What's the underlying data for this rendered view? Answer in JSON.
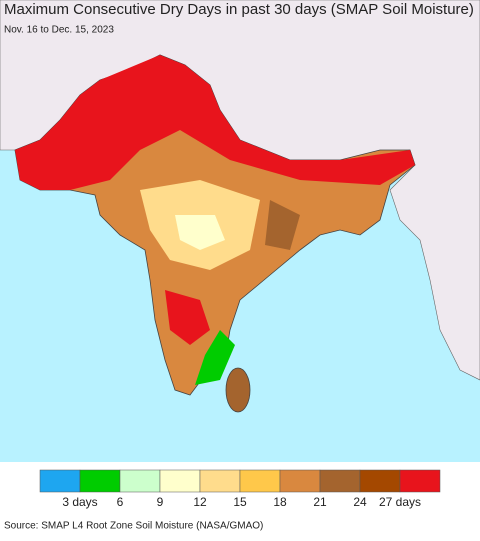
{
  "title": "Maximum Consecutive Dry Days in past 30 days (SMAP Soil Moisture)",
  "subtitle": "Nov. 16 to Dec. 15, 2023",
  "legend": {
    "colors": [
      "#1ea6f0",
      "#00cc00",
      "#ccffcc",
      "#ffffcc",
      "#ffdc8c",
      "#ffc84a",
      "#d9883f",
      "#a4642e",
      "#a44800",
      "#e8141c"
    ],
    "labels": [
      "3 days",
      "6",
      "9",
      "12",
      "15",
      "18",
      "21",
      "24",
      "27 days"
    ]
  },
  "source": "Source: SMAP L4 Root Zone Soil Moisture (NASA/GMAO)"
}
